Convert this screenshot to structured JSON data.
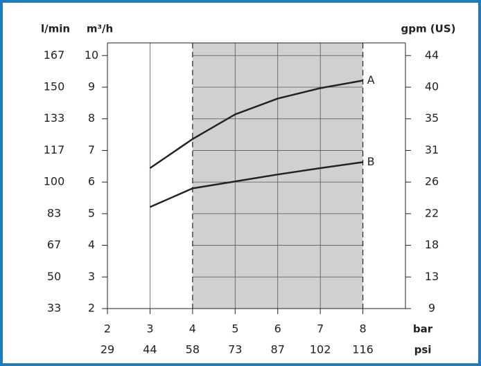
{
  "chart_data": {
    "type": "line",
    "x_label": "bar",
    "x2_label": "psi",
    "y_label_left_outer": "l/min",
    "y_label": "m³/h",
    "y2_label": "gpm (US)",
    "xlim": [
      2,
      9
    ],
    "xticks": [
      2,
      3,
      4,
      5,
      6,
      7,
      8
    ],
    "psi_ticks": [
      {
        "value": 2,
        "label": "29"
      },
      {
        "value": 3,
        "label": "44"
      },
      {
        "value": 4,
        "label": "58"
      },
      {
        "value": 5,
        "label": "73"
      },
      {
        "value": 6,
        "label": "87"
      },
      {
        "value": 7,
        "label": "102"
      },
      {
        "value": 8,
        "label": "116"
      }
    ],
    "ylim": [
      2,
      10.4
    ],
    "yticks": [
      2,
      3,
      4,
      5,
      6,
      7,
      8,
      9,
      10
    ],
    "lmin_ticks": [
      {
        "value": 2,
        "label": "33"
      },
      {
        "value": 3,
        "label": "50"
      },
      {
        "value": 4,
        "label": "67"
      },
      {
        "value": 5,
        "label": "83"
      },
      {
        "value": 6,
        "label": "100"
      },
      {
        "value": 7,
        "label": "117"
      },
      {
        "value": 8,
        "label": "133"
      },
      {
        "value": 9,
        "label": "150"
      },
      {
        "value": 10,
        "label": "167"
      }
    ],
    "gpm_ticks": [
      {
        "value": 2,
        "label": "9"
      },
      {
        "value": 3,
        "label": "13"
      },
      {
        "value": 4,
        "label": "18"
      },
      {
        "value": 5,
        "label": "22"
      },
      {
        "value": 6,
        "label": "26"
      },
      {
        "value": 7,
        "label": "31"
      },
      {
        "value": 8,
        "label": "35"
      },
      {
        "value": 9,
        "label": "40"
      },
      {
        "value": 10,
        "label": "44"
      }
    ],
    "shaded_range": [
      4,
      8
    ],
    "shade_color": "#d0d0d0",
    "x": [
      3,
      4,
      5,
      6,
      7,
      8
    ],
    "series": [
      {
        "name": "A",
        "color": "#222222",
        "values": [
          6.44,
          7.36,
          8.14,
          8.64,
          8.97,
          9.21
        ]
      },
      {
        "name": "B",
        "color": "#222222",
        "values": [
          5.21,
          5.8,
          6.02,
          6.24,
          6.44,
          6.63
        ]
      }
    ]
  }
}
